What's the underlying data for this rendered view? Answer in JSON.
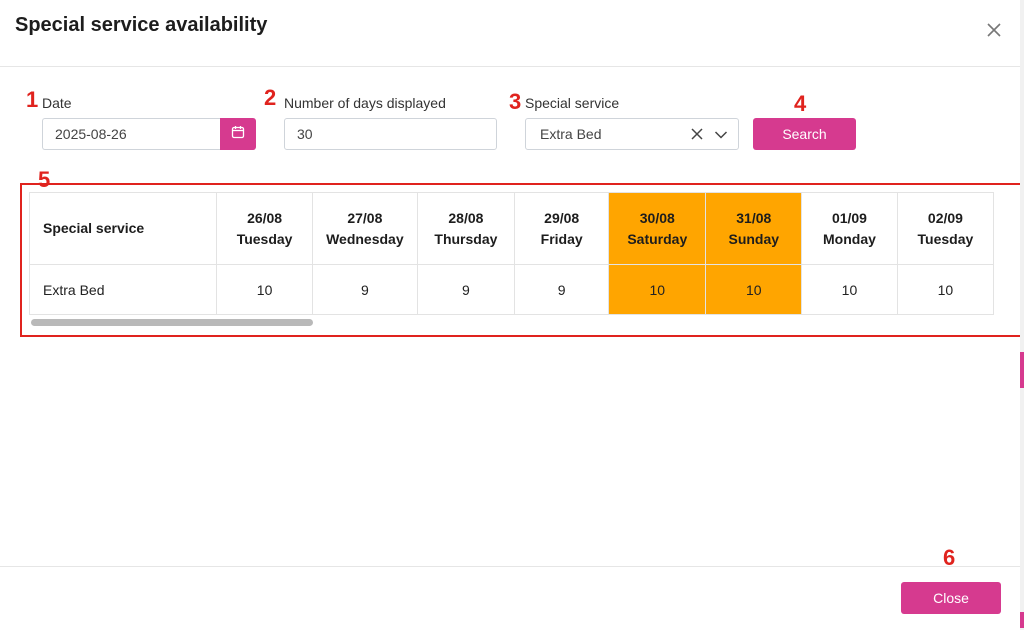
{
  "dialog": {
    "title": "Special service availability",
    "close_icon": "close-icon"
  },
  "steps": [
    "1",
    "2",
    "3",
    "4",
    "5",
    "6"
  ],
  "filters": {
    "date_label": "Date",
    "date_value": "2025-08-26",
    "calendar_icon": "calendar-icon",
    "days_label": "Number of days displayed",
    "days_value": "30",
    "service_label": "Special service",
    "service_value": "Extra Bed",
    "clear_icon": "clear-icon",
    "caret_icon": "chevron-down-icon",
    "search_label": "Search"
  },
  "table": {
    "first_header": "Special service",
    "columns": [
      {
        "date": "26/08",
        "day": "Tuesday",
        "weekend": false
      },
      {
        "date": "27/08",
        "day": "Wednesday",
        "weekend": false
      },
      {
        "date": "28/08",
        "day": "Thursday",
        "weekend": false
      },
      {
        "date": "29/08",
        "day": "Friday",
        "weekend": false
      },
      {
        "date": "30/08",
        "day": "Saturday",
        "weekend": true
      },
      {
        "date": "31/08",
        "day": "Sunday",
        "weekend": true
      },
      {
        "date": "01/09",
        "day": "Monday",
        "weekend": false
      },
      {
        "date": "02/09",
        "day": "Tuesday",
        "weekend": false
      }
    ],
    "rows": [
      {
        "service": "Extra Bed",
        "values": [
          "10",
          "9",
          "9",
          "9",
          "10",
          "10",
          "10",
          "10"
        ]
      }
    ]
  },
  "footer": {
    "close_label": "Close"
  },
  "colors": {
    "accent": "#d63a8f",
    "weekend": "#ffa500",
    "annotation": "#e0231e"
  }
}
